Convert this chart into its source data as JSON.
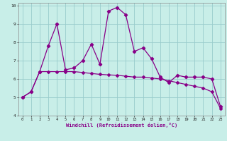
{
  "xlabel": "Windchill (Refroidissement éolien,°C)",
  "bg_color": "#c8eee8",
  "grid_color": "#99cccc",
  "line_color": "#880088",
  "x_hours": [
    0,
    1,
    2,
    3,
    4,
    5,
    6,
    7,
    8,
    9,
    10,
    11,
    12,
    13,
    14,
    15,
    16,
    17,
    18,
    19,
    20,
    21,
    22,
    23
  ],
  "y_raw": [
    5.0,
    5.3,
    6.4,
    7.8,
    9.0,
    6.5,
    6.6,
    7.0,
    7.9,
    6.8,
    9.7,
    9.9,
    9.5,
    7.5,
    7.7,
    7.1,
    6.1,
    5.8,
    6.2,
    6.1,
    6.1,
    6.1,
    6.0,
    4.5
  ],
  "y_trend": [
    5.0,
    5.3,
    6.4,
    6.4,
    6.4,
    6.4,
    6.4,
    6.35,
    6.3,
    6.25,
    6.22,
    6.2,
    6.15,
    6.1,
    6.1,
    6.05,
    6.0,
    5.9,
    5.8,
    5.7,
    5.6,
    5.5,
    5.3,
    4.4
  ],
  "xlim": [
    -0.5,
    23.5
  ],
  "ylim": [
    4,
    10.15
  ],
  "yticks": [
    4,
    5,
    6,
    7,
    8,
    9,
    10
  ],
  "xticks": [
    0,
    1,
    2,
    3,
    4,
    5,
    6,
    7,
    8,
    9,
    10,
    11,
    12,
    13,
    14,
    15,
    16,
    17,
    18,
    19,
    20,
    21,
    22,
    23
  ]
}
